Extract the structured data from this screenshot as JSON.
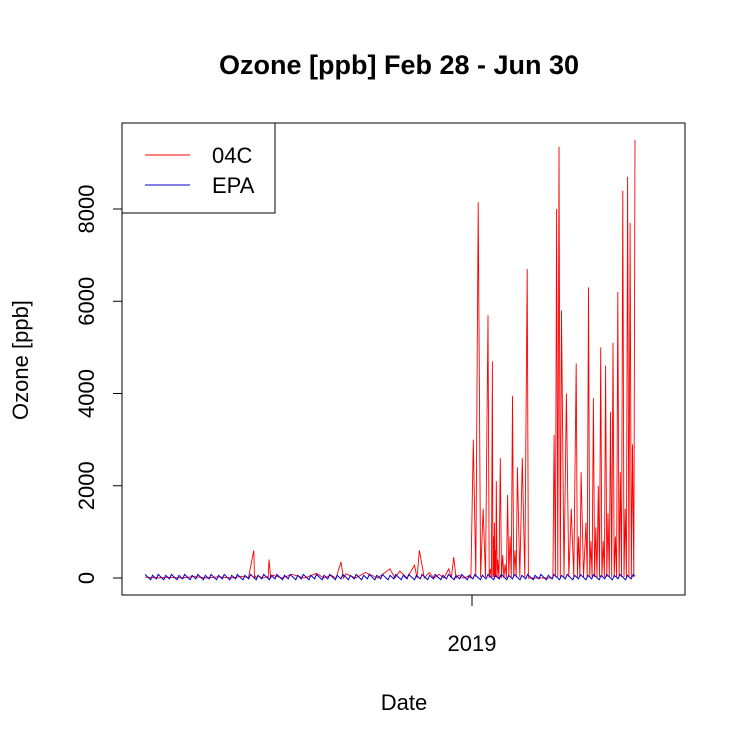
{
  "chart_data": {
    "type": "line",
    "title": "Ozone [ppb] Feb 28 - Jun 30",
    "xlabel": "Date",
    "ylabel": "Ozone [ppb]",
    "x_tick_labels": [
      "2019"
    ],
    "y_ticks": [
      0,
      2000,
      4000,
      6000,
      8000
    ],
    "ylim": [
      -150,
      9700
    ],
    "grid": false,
    "legend": {
      "placement": "top-left",
      "entries": [
        "04C",
        "EPA"
      ]
    },
    "series": [
      {
        "name": "04C",
        "color": "#ff0000",
        "x": [
          0.0,
          0.05,
          0.1,
          0.15,
          0.2,
          0.222,
          0.225,
          0.23,
          0.25,
          0.253,
          0.26,
          0.3,
          0.35,
          0.38,
          0.4,
          0.41,
          0.45,
          0.5,
          0.52,
          0.55,
          0.56,
          0.58,
          0.6,
          0.62,
          0.63,
          0.64,
          0.66,
          0.67,
          0.68,
          0.69,
          0.7,
          0.705,
          0.709,
          0.711,
          0.713,
          0.715,
          0.717,
          0.72,
          0.725,
          0.73,
          0.735,
          0.74,
          0.745,
          0.75,
          0.755,
          0.76,
          0.77,
          0.78,
          0.785,
          0.79,
          0.8,
          0.805,
          0.81,
          0.815,
          0.82,
          0.83,
          0.835,
          0.84,
          0.845,
          0.85,
          0.86,
          0.87,
          0.88,
          0.885,
          0.89,
          0.9,
          0.905,
          0.91,
          0.915,
          0.92,
          0.925,
          0.93,
          0.935,
          0.94,
          0.945,
          0.95,
          0.955,
          0.96,
          0.965,
          0.97,
          0.975,
          0.98,
          0.985,
          0.99,
          0.995,
          1.0
        ],
        "y": [
          20,
          15,
          30,
          25,
          40,
          600,
          40,
          50,
          30,
          400,
          60,
          80,
          100,
          60,
          350,
          90,
          120,
          200,
          150,
          280,
          600,
          120,
          80,
          200,
          450,
          60,
          40,
          3000,
          8150,
          1500,
          5700,
          200,
          4700,
          900,
          1200,
          600,
          2100,
          400,
          2600,
          500,
          300,
          1800,
          900,
          3950,
          600,
          2400,
          2600,
          6700,
          0,
          0,
          0,
          0,
          0,
          0,
          0,
          0,
          3100,
          8000,
          9350,
          5800,
          4000,
          1500,
          4650,
          900,
          2300,
          1200,
          6300,
          800,
          3900,
          1100,
          2000,
          5000,
          800,
          4600,
          1400,
          3600,
          5100,
          900,
          6200,
          2300,
          8400,
          1500,
          8700,
          7700,
          2900,
          9500
        ],
        "note": "Values sampled along the original date axis; x is fraction of the shown date range (Feb 28 to Jun 30)."
      },
      {
        "name": "EPA",
        "color": "#0000cd",
        "x": [
          0.0,
          1.0
        ],
        "y": [
          20,
          20
        ]
      }
    ]
  }
}
